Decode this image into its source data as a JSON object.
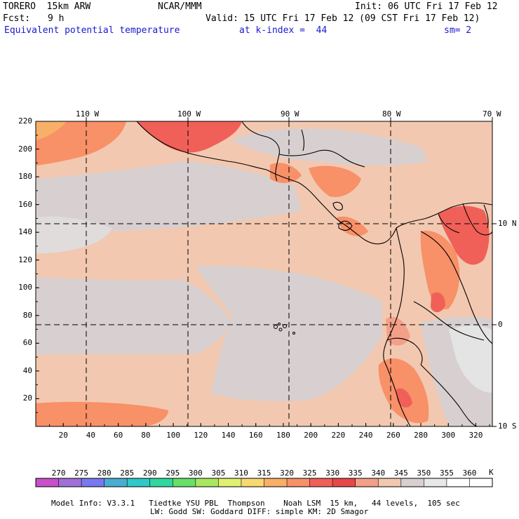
{
  "header": {
    "model": "TORERO  15km ARW",
    "org": "NCAR/MMM",
    "init": "Init: 06 UTC Fri 17 Feb 12",
    "fcst_label": "Fcst:",
    "fcst_hours": "9 h",
    "valid": "Valid: 15 UTC Fri 17 Feb 12 (09 CST Fri 17 Feb 12)",
    "field": "Equivalent potential temperature",
    "level": "at k-index =  44",
    "smoothing": "sm= 2"
  },
  "map": {
    "top_lon_labels": [
      "110 W",
      "100 W",
      "90 W",
      "80 W",
      "70 W"
    ],
    "right_lat_labels": [
      "10 N",
      "0",
      "10 S"
    ],
    "left_ticks": [
      "220",
      "200",
      "180",
      "160",
      "140",
      "120",
      "100",
      "80",
      "60",
      "40",
      "20"
    ],
    "bottom_ticks": [
      "20",
      "40",
      "60",
      "80",
      "100",
      "120",
      "140",
      "160",
      "180",
      "200",
      "220",
      "240",
      "260",
      "280",
      "300",
      "320"
    ],
    "grid_x_range": [
      0,
      332
    ],
    "grid_y_range": [
      0,
      220
    ]
  },
  "colorbar": {
    "labels": [
      "270",
      "275",
      "280",
      "285",
      "290",
      "295",
      "300",
      "305",
      "310",
      "315",
      "320",
      "325",
      "330",
      "335",
      "340",
      "345",
      "350",
      "355",
      "360"
    ],
    "unit": "K",
    "colors": [
      "#c850c8",
      "#a070d8",
      "#7878f0",
      "#4aaed0",
      "#30c8c8",
      "#30d8a0",
      "#68e068",
      "#a8e860",
      "#e0f070",
      "#f8d870",
      "#f8b068",
      "#f89068",
      "#f06058",
      "#e84848",
      "#f4a088",
      "#f2c8b0",
      "#d8d0d0",
      "#e8e8e8",
      "#ffffff",
      "#ffffff"
    ]
  },
  "footer": {
    "line1": "Model Info: V3.3.1   Tiedtke YSU PBL  Thompson    Noah LSM  15 km,   44 levels,  105 sec",
    "line2": "LW: Godd SW: Goddard DIFF: simple KM: 2D Smagor"
  }
}
